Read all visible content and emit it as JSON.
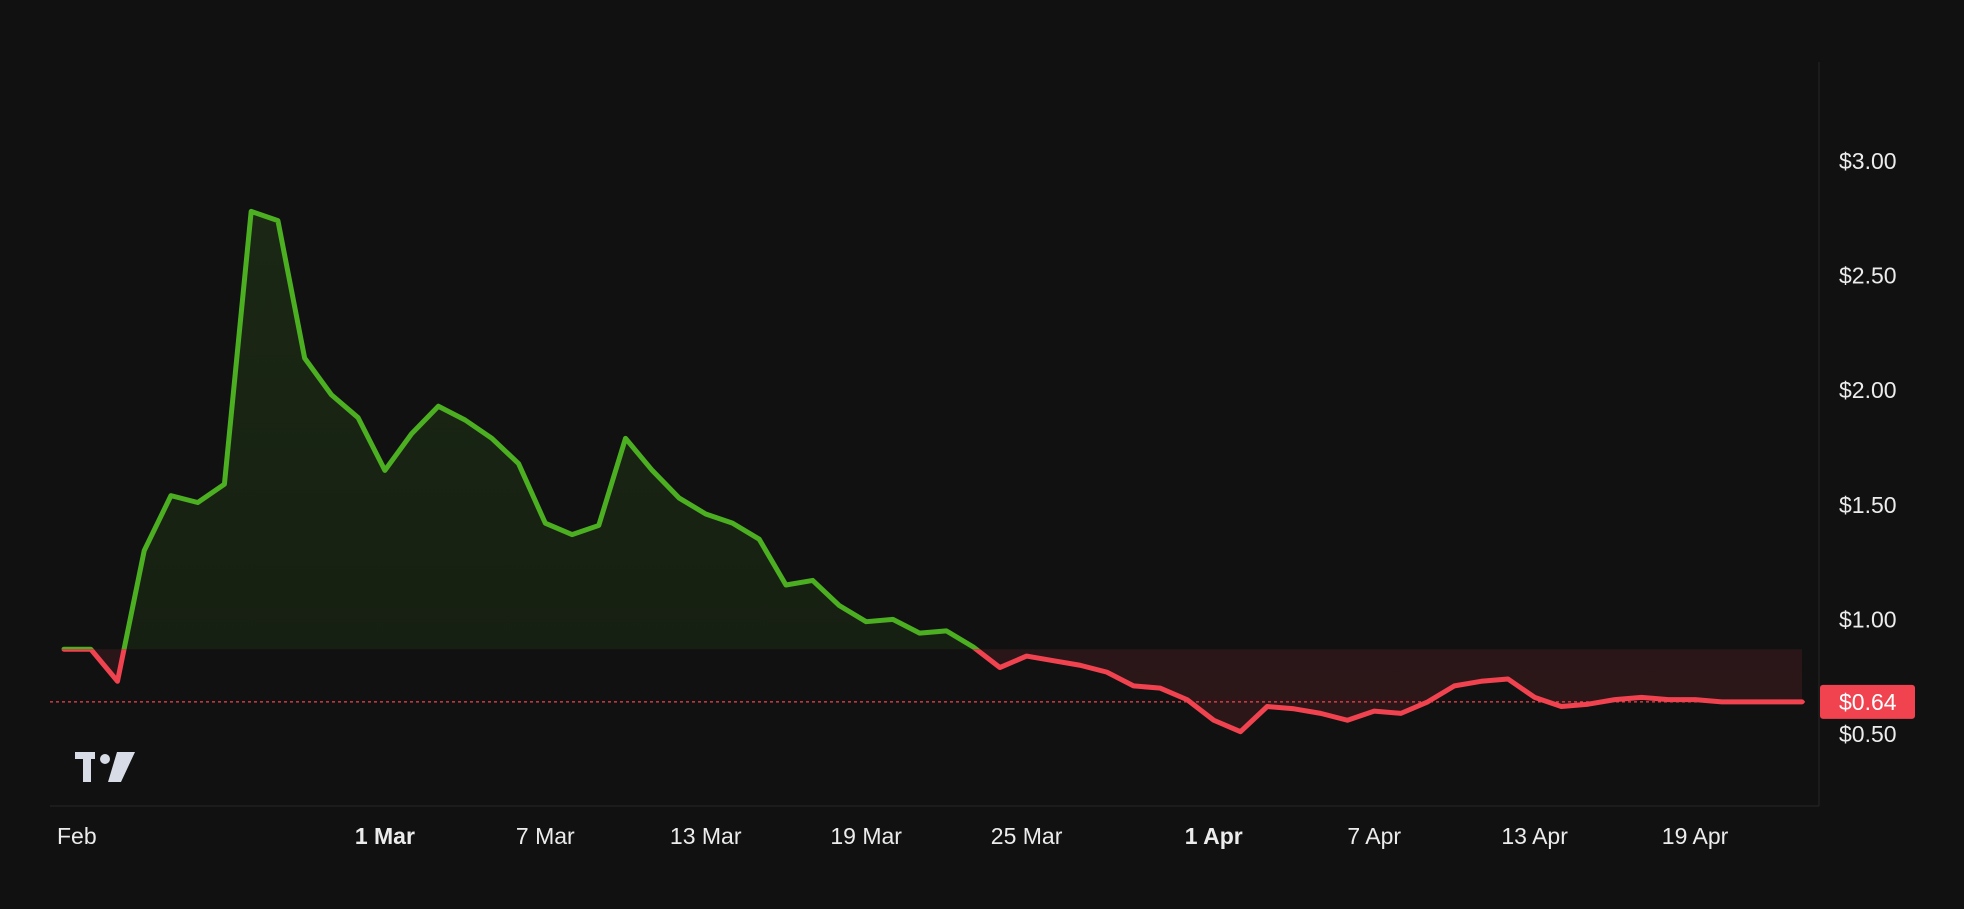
{
  "chart_data": {
    "type": "area",
    "title": "",
    "xlabel": "",
    "ylabel": "",
    "ylim": [
      0.2,
      3.35
    ],
    "baseline": 0.87,
    "last_price": 0.64,
    "last_price_label": "$0.64",
    "y_ticks": [
      {
        "value": 0.5,
        "label": "$0.50"
      },
      {
        "value": 1.0,
        "label": "$1.00"
      },
      {
        "value": 1.5,
        "label": "$1.50"
      },
      {
        "value": 2.0,
        "label": "$2.00"
      },
      {
        "value": 2.5,
        "label": "$2.50"
      },
      {
        "value": 3.0,
        "label": "$3.00"
      }
    ],
    "x_ticks": [
      {
        "date": "2024-02-18",
        "label": "Feb",
        "bold": false
      },
      {
        "date": "2024-03-01",
        "label": "1 Mar",
        "bold": true
      },
      {
        "date": "2024-03-07",
        "label": "7 Mar",
        "bold": false
      },
      {
        "date": "2024-03-13",
        "label": "13 Mar",
        "bold": false
      },
      {
        "date": "2024-03-19",
        "label": "19 Mar",
        "bold": false
      },
      {
        "date": "2024-03-25",
        "label": "25 Mar",
        "bold": false
      },
      {
        "date": "2024-04-01",
        "label": "1 Apr",
        "bold": true
      },
      {
        "date": "2024-04-07",
        "label": "7 Apr",
        "bold": false
      },
      {
        "date": "2024-04-13",
        "label": "13 Apr",
        "bold": false
      },
      {
        "date": "2024-04-19",
        "label": "19 Apr",
        "bold": false
      }
    ],
    "series": [
      {
        "x": [
          "2024-02-18",
          "2024-02-19",
          "2024-02-20",
          "2024-02-21",
          "2024-02-22",
          "2024-02-23",
          "2024-02-24",
          "2024-02-25",
          "2024-02-26",
          "2024-02-27",
          "2024-02-28",
          "2024-02-29",
          "2024-03-01",
          "2024-03-02",
          "2024-03-03",
          "2024-03-04",
          "2024-03-05",
          "2024-03-06",
          "2024-03-07",
          "2024-03-08",
          "2024-03-09",
          "2024-03-10",
          "2024-03-11",
          "2024-03-12",
          "2024-03-13",
          "2024-03-14",
          "2024-03-15",
          "2024-03-16",
          "2024-03-17",
          "2024-03-18",
          "2024-03-19",
          "2024-03-20",
          "2024-03-21",
          "2024-03-22",
          "2024-03-23",
          "2024-03-24",
          "2024-03-25",
          "2024-03-26",
          "2024-03-27",
          "2024-03-28",
          "2024-03-29",
          "2024-03-30",
          "2024-03-31",
          "2024-04-01",
          "2024-04-02",
          "2024-04-03",
          "2024-04-04",
          "2024-04-05",
          "2024-04-06",
          "2024-04-07",
          "2024-04-08",
          "2024-04-09",
          "2024-04-10",
          "2024-04-11",
          "2024-04-12",
          "2024-04-13",
          "2024-04-14",
          "2024-04-15",
          "2024-04-16",
          "2024-04-17",
          "2024-04-18",
          "2024-04-19",
          "2024-04-20",
          "2024-04-21",
          "2024-04-22",
          "2024-04-23"
        ],
        "values": [
          0.87,
          0.87,
          0.73,
          1.3,
          1.54,
          1.51,
          1.59,
          2.78,
          2.74,
          2.14,
          1.98,
          1.88,
          1.65,
          1.81,
          1.93,
          1.87,
          1.79,
          1.68,
          1.42,
          1.37,
          1.41,
          1.79,
          1.65,
          1.53,
          1.46,
          1.42,
          1.35,
          1.15,
          1.17,
          1.06,
          0.99,
          1.0,
          0.94,
          0.95,
          0.88,
          0.79,
          0.84,
          0.82,
          0.8,
          0.77,
          0.71,
          0.7,
          0.65,
          0.56,
          0.51,
          0.62,
          0.61,
          0.59,
          0.56,
          0.6,
          0.59,
          0.64,
          0.71,
          0.73,
          0.74,
          0.66,
          0.62,
          0.63,
          0.65,
          0.66,
          0.65,
          0.65,
          0.64,
          0.64,
          0.64,
          0.64
        ]
      }
    ],
    "colors": {
      "up": "#4CAF22",
      "down": "#F0434F",
      "background": "#111111",
      "text": "#ECECEC",
      "price_tag": "#F0434F"
    },
    "logo_icon": "tradingview-logo-icon"
  }
}
